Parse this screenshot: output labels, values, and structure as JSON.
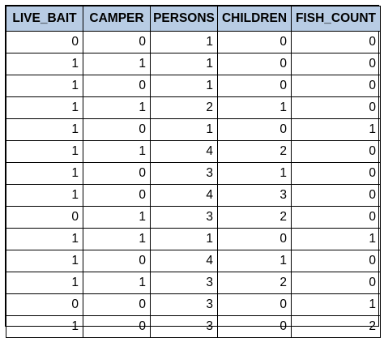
{
  "table": {
    "headers": [
      "LIVE_BAIT",
      "CAMPER",
      "PERSONS",
      "CHILDREN",
      "FISH_COUNT"
    ],
    "rows": [
      [
        "0",
        "0",
        "1",
        "0",
        "0"
      ],
      [
        "1",
        "1",
        "1",
        "0",
        "0"
      ],
      [
        "1",
        "0",
        "1",
        "0",
        "0"
      ],
      [
        "1",
        "1",
        "2",
        "1",
        "0"
      ],
      [
        "1",
        "0",
        "1",
        "0",
        "1"
      ],
      [
        "1",
        "1",
        "4",
        "2",
        "0"
      ],
      [
        "1",
        "0",
        "3",
        "1",
        "0"
      ],
      [
        "1",
        "0",
        "4",
        "3",
        "0"
      ],
      [
        "0",
        "1",
        "3",
        "2",
        "0"
      ],
      [
        "1",
        "1",
        "1",
        "0",
        "1"
      ],
      [
        "1",
        "0",
        "4",
        "1",
        "0"
      ],
      [
        "1",
        "1",
        "3",
        "2",
        "0"
      ],
      [
        "0",
        "0",
        "3",
        "0",
        "1"
      ],
      [
        "1",
        "0",
        "3",
        "0",
        "2"
      ]
    ]
  },
  "colors": {
    "header_background": "#b8cce4",
    "border": "#000000"
  }
}
